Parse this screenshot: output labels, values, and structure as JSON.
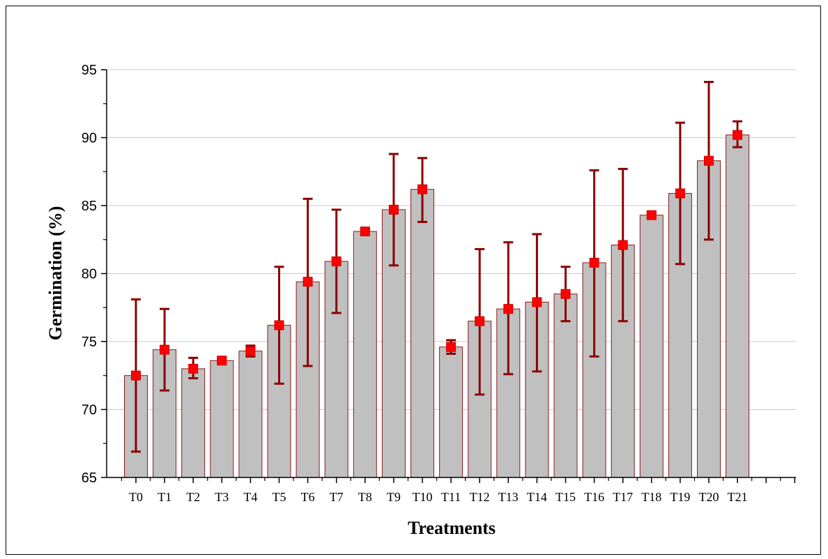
{
  "colors": {
    "bar_fill": "#c0c0c0",
    "bar_stroke": "#8b1a1a",
    "error_bar": "#8b0000",
    "marker": "#ff0000",
    "grid": "#c8c8c8",
    "axis": "#000000"
  },
  "chart_data": {
    "type": "bar",
    "xlabel": "Treatments",
    "ylabel": "Germination (%)",
    "ylim": [
      65,
      95
    ],
    "yticks": [
      65,
      70,
      75,
      80,
      85,
      90,
      95
    ],
    "grid": "horizontal",
    "categories": [
      "T0",
      "T1",
      "T2",
      "T3",
      "T4",
      "T5",
      "T6",
      "T7",
      "T8",
      "T9",
      "T10",
      "T11",
      "T12",
      "T13",
      "T14",
      "T15",
      "T16",
      "T17",
      "T18",
      "T19",
      "T20",
      "T21"
    ],
    "series": [
      {
        "values": [
          72.5,
          74.4,
          73.0,
          73.6,
          74.3,
          76.2,
          79.4,
          80.9,
          83.1,
          84.7,
          86.2,
          74.6,
          76.5,
          77.4,
          77.9,
          78.5,
          80.8,
          82.1,
          84.3,
          85.9,
          88.3,
          90.2
        ],
        "error_high": [
          78.1,
          77.4,
          73.8,
          73.8,
          74.7,
          80.5,
          85.5,
          84.7,
          83.3,
          88.8,
          88.5,
          75.1,
          81.8,
          82.3,
          82.9,
          80.5,
          87.6,
          87.7,
          84.5,
          91.1,
          94.1,
          91.2
        ],
        "error_low": [
          66.9,
          71.4,
          72.3,
          73.4,
          73.9,
          71.9,
          73.2,
          77.1,
          82.9,
          80.6,
          83.8,
          74.1,
          71.1,
          72.6,
          72.8,
          76.5,
          73.9,
          76.5,
          84.1,
          80.7,
          82.5,
          89.3
        ]
      }
    ]
  }
}
